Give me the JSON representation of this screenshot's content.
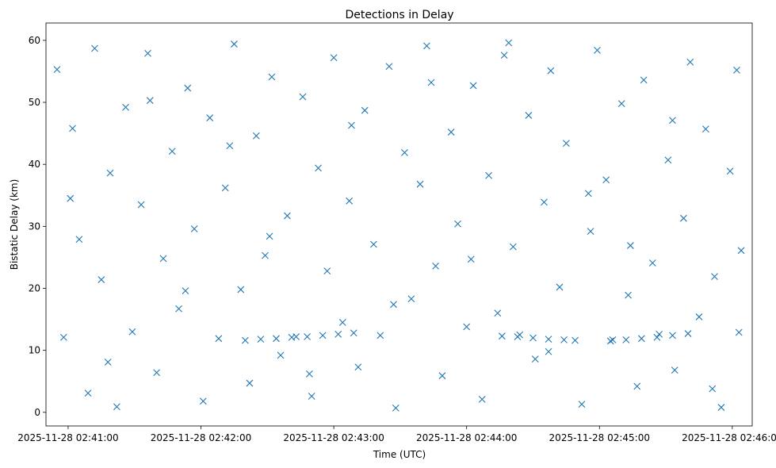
{
  "chart_data": {
    "type": "scatter",
    "title": "Detections in Delay",
    "xlabel": "Time (UTC)",
    "ylabel": "Bistatic Delay (km)",
    "x_ticks": [
      "2025-11-28 02:41:00",
      "2025-11-28 02:42:00",
      "2025-11-28 02:43:00",
      "2025-11-28 02:44:00",
      "2025-11-28 02:45:00",
      "2025-11-28 02:46:00"
    ],
    "y_ticks": [
      "0",
      "10",
      "20",
      "30",
      "40",
      "50",
      "60"
    ],
    "xlim": [
      "2025-11-28 02:40:50",
      "2025-11-28 02:46:09"
    ],
    "ylim": [
      -2.2,
      62.8
    ],
    "grid": false,
    "marker": "x",
    "color": "#1f77b4",
    "series": [
      {
        "name": "",
        "x": [
          "2025-11-28 02:40:55",
          "2025-11-28 02:40:58",
          "2025-11-28 02:41:02",
          "2025-11-28 02:41:05",
          "2025-11-28 02:41:09",
          "2025-11-28 02:41:12",
          "2025-11-28 02:41:15",
          "2025-11-28 02:41:19",
          "2025-11-28 02:41:22",
          "2025-11-28 02:41:26",
          "2025-11-28 02:41:29",
          "2025-11-28 02:41:33",
          "2025-11-28 02:41:36",
          "2025-11-28 02:41:40",
          "2025-11-28 02:41:43",
          "2025-11-28 02:41:47",
          "2025-11-28 02:41:50",
          "2025-11-28 02:41:54",
          "2025-11-28 02:41:57",
          "2025-11-28 02:42:01",
          "2025-11-28 02:42:04",
          "2025-11-28 02:42:08",
          "2025-11-28 02:42:11",
          "2025-11-28 02:42:15",
          "2025-11-28 02:42:18",
          "2025-11-28 02:42:22",
          "2025-11-28 02:42:25",
          "2025-11-28 02:42:29",
          "2025-11-28 02:42:32",
          "2025-11-28 02:42:36",
          "2025-11-28 02:42:39",
          "2025-11-28 02:42:43",
          "2025-11-28 02:42:46",
          "2025-11-28 02:42:50",
          "2025-11-28 02:42:53",
          "2025-11-28 02:42:57",
          "2025-11-28 02:43:00",
          "2025-11-28 02:43:04",
          "2025-11-28 02:43:07",
          "2025-11-28 02:43:11",
          "2025-11-28 02:43:14",
          "2025-11-28 02:43:18",
          "2025-11-28 02:43:21",
          "2025-11-28 02:43:25",
          "2025-11-28 02:43:28",
          "2025-11-28 02:43:32",
          "2025-11-28 02:43:35",
          "2025-11-28 02:43:39",
          "2025-11-28 02:43:42",
          "2025-11-28 02:43:46",
          "2025-11-28 02:43:49",
          "2025-11-28 02:43:53",
          "2025-11-28 02:43:56",
          "2025-11-28 02:44:00",
          "2025-11-28 02:44:03",
          "2025-11-28 02:44:07",
          "2025-11-28 02:44:10",
          "2025-11-28 02:44:14",
          "2025-11-28 02:44:17",
          "2025-11-28 02:44:21",
          "2025-11-28 02:44:24",
          "2025-11-28 02:44:28",
          "2025-11-28 02:44:31",
          "2025-11-28 02:44:35",
          "2025-11-28 02:44:38",
          "2025-11-28 02:44:42",
          "2025-11-28 02:44:45",
          "2025-11-28 02:44:49",
          "2025-11-28 02:44:52",
          "2025-11-28 02:44:56",
          "2025-11-28 02:44:59",
          "2025-11-28 02:45:03",
          "2025-11-28 02:45:06",
          "2025-11-28 02:45:10",
          "2025-11-28 02:45:13",
          "2025-11-28 02:45:17",
          "2025-11-28 02:45:20",
          "2025-11-28 02:45:24",
          "2025-11-28 02:45:27",
          "2025-11-28 02:45:31",
          "2025-11-28 02:45:34",
          "2025-11-28 02:45:38",
          "2025-11-28 02:45:41",
          "2025-11-28 02:45:45",
          "2025-11-28 02:45:48",
          "2025-11-28 02:45:52",
          "2025-11-28 02:45:55",
          "2025-11-28 02:45:59",
          "2025-11-28 02:46:02",
          "2025-11-28 02:46:04",
          "2025-11-28 02:41:01",
          "2025-11-28 02:41:18",
          "2025-11-28 02:41:37",
          "2025-11-28 02:41:53",
          "2025-11-28 02:42:13",
          "2025-11-28 02:42:31",
          "2025-11-28 02:42:49",
          "2025-11-28 02:43:08",
          "2025-11-28 02:43:27",
          "2025-11-28 02:43:44",
          "2025-11-28 02:44:02",
          "2025-11-28 02:44:19",
          "2025-11-28 02:44:37",
          "2025-11-28 02:44:55",
          "2025-11-28 02:45:14",
          "2025-11-28 02:45:33",
          "2025-11-28 02:45:51",
          "2025-11-28 02:46:03",
          "2025-11-28 02:42:20",
          "2025-11-28 02:42:27",
          "2025-11-28 02:42:34",
          "2025-11-28 02:42:41",
          "2025-11-28 02:42:48",
          "2025-11-28 02:42:55",
          "2025-11-28 02:43:02",
          "2025-11-28 02:43:09",
          "2025-11-28 02:44:16",
          "2025-11-28 02:44:23",
          "2025-11-28 02:44:30",
          "2025-11-28 02:44:37",
          "2025-11-28 02:44:44",
          "2025-11-28 02:45:05",
          "2025-11-28 02:45:12",
          "2025-11-28 02:45:19",
          "2025-11-28 02:45:26",
          "2025-11-28 02:45:33",
          "2025-11-28 02:45:40"
        ],
        "y": [
          55.3,
          12.1,
          45.8,
          27.9,
          3.1,
          58.7,
          21.4,
          38.6,
          0.9,
          49.2,
          13.0,
          33.5,
          57.9,
          6.4,
          24.8,
          42.1,
          16.7,
          52.3,
          29.6,
          1.8,
          47.5,
          11.9,
          36.2,
          59.4,
          19.8,
          4.7,
          44.6,
          25.3,
          54.1,
          9.2,
          31.7,
          12.2,
          50.9,
          2.6,
          39.4,
          22.8,
          57.2,
          14.5,
          34.1,
          7.3,
          48.7,
          27.1,
          12.4,
          55.8,
          0.7,
          41.9,
          18.3,
          36.8,
          59.1,
          23.6,
          5.9,
          45.2,
          30.4,
          13.8,
          52.7,
          2.1,
          38.2,
          16.0,
          57.6,
          26.7,
          12.5,
          47.9,
          8.6,
          33.9,
          55.1,
          20.2,
          43.4,
          11.6,
          1.3,
          29.2,
          58.4,
          37.5,
          11.7,
          49.8,
          18.9,
          4.2,
          53.6,
          24.1,
          12.6,
          40.7,
          6.8,
          31.3,
          56.5,
          15.4,
          45.7,
          21.9,
          0.8,
          38.9,
          55.2,
          26.1,
          34.5,
          8.1,
          50.3,
          19.6,
          43.0,
          28.4,
          6.2,
          46.3,
          17.4,
          53.2,
          24.7,
          59.6,
          9.8,
          35.3,
          26.9,
          47.1,
          3.8,
          12.9,
          11.6,
          11.8,
          11.9,
          12.1,
          12.2,
          12.4,
          12.6,
          12.8,
          12.3,
          12.2,
          12.0,
          11.8,
          11.7,
          11.5,
          11.7,
          11.9,
          12.1,
          12.4,
          12.7
        ]
      }
    ]
  }
}
